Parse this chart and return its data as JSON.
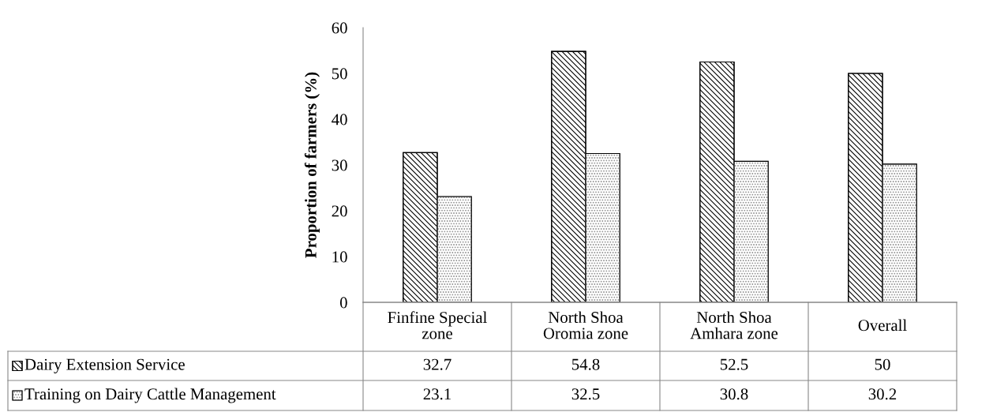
{
  "chart_data": {
    "type": "bar",
    "ylabel": "Proportion of farmers (%)",
    "categories": [
      "Finfine Special zone",
      "North Shoa Oromia zone",
      "North Shoa Amhara zone",
      "Overall"
    ],
    "series": [
      {
        "name": "Dairy Extension Service",
        "color": "#000000",
        "values": [
          32.7,
          54.8,
          52.5,
          50
        ]
      },
      {
        "name": "Training on Dairy Cattle Management",
        "color": "#8c8c8c",
        "values": [
          23.1,
          32.5,
          30.8,
          30.2
        ]
      }
    ],
    "ylim": [
      0,
      60
    ],
    "yticks": [
      0,
      10,
      20,
      30,
      40,
      50,
      60
    ],
    "data_labels": true,
    "legend": "bottom",
    "grid": false
  }
}
